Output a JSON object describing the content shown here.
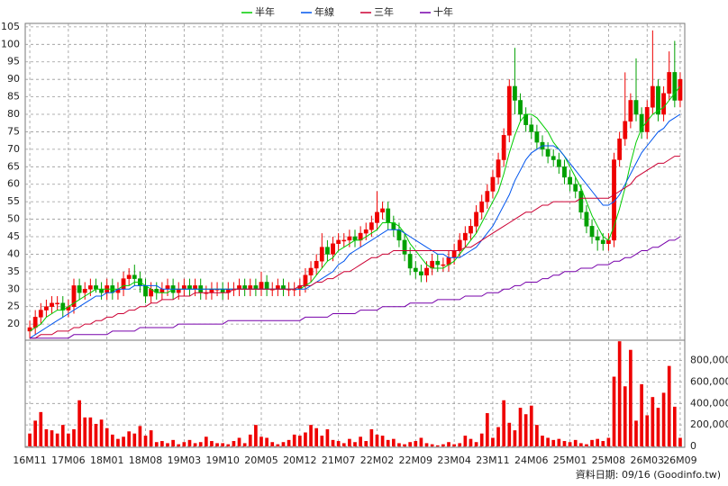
{
  "chart_data": [
    {
      "type": "candlestick",
      "ylim": [
        15.4,
        106
      ],
      "yticks": [
        20,
        25,
        30,
        35,
        40,
        45,
        50,
        55,
        60,
        65,
        70,
        75,
        80,
        85,
        90,
        95,
        100,
        105
      ],
      "grid": true,
      "legend": "top",
      "up_color": "#ee0000",
      "down_color": "#00a000",
      "open": [
        18,
        19,
        22,
        24,
        25,
        26,
        26,
        24,
        25,
        31,
        29,
        30,
        31,
        30,
        29,
        31,
        29,
        30,
        33,
        34,
        33,
        31,
        28,
        30,
        29,
        30,
        31,
        29,
        30,
        31,
        30,
        31,
        29,
        29,
        30,
        30,
        29,
        30,
        30,
        31,
        30,
        31,
        30,
        32,
        30,
        30,
        31,
        30,
        30,
        30,
        31,
        34,
        36,
        38,
        42,
        40,
        43,
        44,
        44,
        45,
        44,
        46,
        47,
        49,
        52,
        53,
        49,
        47,
        44,
        40,
        36,
        35,
        34,
        36,
        38,
        37,
        37,
        39,
        41,
        44,
        46,
        48,
        52,
        55,
        58,
        62,
        67,
        74,
        88,
        84,
        80,
        77,
        75,
        72,
        70,
        68,
        67,
        65,
        62,
        60,
        58,
        52,
        48,
        45,
        44,
        43,
        44,
        67,
        73,
        78,
        84,
        80,
        75,
        82,
        88,
        80,
        86,
        92,
        84
      ],
      "high": [
        21,
        24,
        26,
        27,
        28,
        28,
        28,
        27,
        33,
        33,
        32,
        33,
        33,
        32,
        33,
        33,
        32,
        35,
        36,
        37,
        35,
        33,
        32,
        32,
        32,
        33,
        33,
        32,
        33,
        33,
        33,
        33,
        31,
        32,
        32,
        32,
        32,
        32,
        33,
        33,
        33,
        33,
        35,
        34,
        32,
        33,
        33,
        32,
        32,
        33,
        36,
        38,
        40,
        46,
        44,
        45,
        46,
        46,
        47,
        47,
        48,
        49,
        51,
        58,
        55,
        55,
        51,
        49,
        46,
        42,
        38,
        37,
        38,
        40,
        40,
        39,
        41,
        43,
        46,
        48,
        50,
        54,
        57,
        60,
        64,
        69,
        76,
        90,
        99,
        86,
        82,
        79,
        77,
        74,
        72,
        70,
        69,
        67,
        64,
        62,
        60,
        54,
        50,
        47,
        46,
        46,
        69,
        75,
        92,
        86,
        96,
        82,
        84,
        104,
        90,
        88,
        98,
        101,
        92
      ],
      "low": [
        16,
        17,
        20,
        22,
        23,
        24,
        22,
        22,
        23,
        27,
        27,
        28,
        29,
        27,
        27,
        27,
        27,
        28,
        31,
        31,
        29,
        26,
        26,
        27,
        27,
        28,
        27,
        27,
        28,
        28,
        28,
        27,
        27,
        27,
        28,
        27,
        27,
        28,
        28,
        28,
        28,
        28,
        28,
        28,
        28,
        28,
        28,
        28,
        28,
        28,
        29,
        32,
        34,
        36,
        38,
        38,
        41,
        42,
        42,
        42,
        42,
        44,
        45,
        47,
        50,
        47,
        45,
        42,
        38,
        34,
        33,
        32,
        32,
        34,
        35,
        35,
        35,
        37,
        39,
        42,
        44,
        46,
        50,
        53,
        56,
        60,
        65,
        72,
        80,
        78,
        75,
        73,
        70,
        68,
        66,
        65,
        63,
        60,
        58,
        56,
        50,
        46,
        43,
        41,
        41,
        41,
        42,
        65,
        71,
        76,
        78,
        73,
        73,
        80,
        78,
        78,
        84,
        82,
        82
      ],
      "close": [
        19,
        22,
        24,
        25,
        26,
        26,
        24,
        25,
        31,
        29,
        30,
        31,
        30,
        29,
        31,
        29,
        30,
        33,
        34,
        33,
        31,
        28,
        30,
        29,
        30,
        31,
        29,
        30,
        31,
        30,
        31,
        29,
        29,
        30,
        30,
        29,
        30,
        30,
        31,
        30,
        31,
        30,
        32,
        30,
        30,
        31,
        30,
        30,
        30,
        31,
        34,
        36,
        38,
        42,
        40,
        43,
        44,
        44,
        45,
        44,
        46,
        47,
        49,
        52,
        53,
        49,
        47,
        44,
        40,
        36,
        35,
        34,
        36,
        38,
        37,
        37,
        39,
        41,
        44,
        46,
        48,
        52,
        55,
        58,
        62,
        67,
        74,
        88,
        84,
        80,
        77,
        75,
        72,
        70,
        68,
        67,
        65,
        62,
        60,
        58,
        52,
        48,
        45,
        44,
        43,
        44,
        67,
        73,
        78,
        84,
        80,
        75,
        82,
        88,
        80,
        86,
        92,
        84,
        90
      ],
      "series": [
        {
          "name": "半年",
          "color": "#00cc00",
          "values": [
            18,
            19,
            20,
            22,
            23,
            24,
            24,
            25,
            26,
            27,
            28,
            29,
            30,
            30,
            30,
            30,
            30,
            31,
            31,
            32,
            32,
            31,
            30,
            29,
            29,
            29,
            30,
            30,
            30,
            30,
            30,
            30,
            30,
            30,
            30,
            30,
            30,
            30,
            30,
            30,
            30,
            30,
            30,
            30,
            30,
            30,
            30,
            30,
            30,
            30,
            31,
            32,
            34,
            36,
            38,
            39,
            41,
            42,
            43,
            44,
            44,
            45,
            46,
            47,
            49,
            49,
            49,
            48,
            46,
            43,
            41,
            39,
            37,
            36,
            36,
            36,
            37,
            38,
            40,
            42,
            44,
            46,
            49,
            52,
            55,
            58,
            63,
            69,
            74,
            78,
            80,
            80,
            79,
            77,
            75,
            72,
            70,
            68,
            65,
            62,
            59,
            55,
            51,
            48,
            45,
            44,
            48,
            53,
            59,
            66,
            72,
            76,
            78,
            80,
            81,
            82,
            84,
            86,
            88
          ]
        },
        {
          "name": "年線",
          "color": "#0055ee",
          "values": [
            16,
            17,
            18,
            19,
            20,
            21,
            22,
            23,
            24,
            25,
            26,
            27,
            28,
            28,
            29,
            29,
            30,
            30,
            30,
            31,
            31,
            31,
            31,
            31,
            30,
            30,
            30,
            30,
            30,
            30,
            30,
            30,
            30,
            30,
            30,
            30,
            30,
            30,
            30,
            30,
            30,
            30,
            30,
            30,
            30,
            30,
            30,
            30,
            30,
            30,
            30,
            31,
            32,
            33,
            34,
            35,
            37,
            38,
            40,
            41,
            42,
            43,
            44,
            45,
            46,
            47,
            47,
            47,
            46,
            45,
            44,
            43,
            42,
            41,
            40,
            40,
            39,
            39,
            39,
            40,
            41,
            42,
            44,
            46,
            48,
            51,
            54,
            57,
            61,
            64,
            67,
            69,
            70,
            71,
            71,
            71,
            70,
            68,
            66,
            64,
            62,
            60,
            58,
            56,
            54,
            54,
            55,
            57,
            60,
            63,
            66,
            69,
            71,
            73,
            75,
            76,
            78,
            79,
            80
          ]
        },
        {
          "name": "三年",
          "color": "#cc0033",
          "values": [
            16,
            16,
            17,
            17,
            17,
            18,
            18,
            18,
            19,
            19,
            20,
            20,
            21,
            21,
            22,
            22,
            23,
            23,
            24,
            24,
            25,
            25,
            26,
            26,
            27,
            27,
            27,
            28,
            28,
            28,
            29,
            29,
            29,
            29,
            29,
            29,
            29,
            30,
            30,
            30,
            30,
            30,
            30,
            30,
            30,
            30,
            30,
            30,
            30,
            31,
            31,
            31,
            32,
            32,
            33,
            33,
            34,
            35,
            35,
            36,
            37,
            38,
            39,
            39,
            40,
            40,
            41,
            41,
            41,
            41,
            41,
            41,
            41,
            41,
            41,
            41,
            41,
            41,
            41,
            42,
            42,
            43,
            44,
            45,
            46,
            47,
            48,
            49,
            50,
            51,
            52,
            52,
            53,
            54,
            54,
            55,
            55,
            55,
            55,
            55,
            56,
            56,
            56,
            56,
            56,
            56,
            57,
            58,
            59,
            60,
            62,
            63,
            64,
            65,
            66,
            66,
            67,
            68,
            68
          ]
        },
        {
          "name": "十年",
          "color": "#7700aa",
          "values": [
            16,
            16,
            16,
            16,
            16,
            16,
            16,
            16,
            17,
            17,
            17,
            17,
            17,
            17,
            17,
            18,
            18,
            18,
            18,
            18,
            19,
            19,
            19,
            19,
            19,
            19,
            19,
            20,
            20,
            20,
            20,
            20,
            20,
            20,
            20,
            20,
            21,
            21,
            21,
            21,
            21,
            21,
            21,
            21,
            21,
            21,
            21,
            21,
            21,
            21,
            22,
            22,
            22,
            22,
            22,
            23,
            23,
            23,
            23,
            23,
            24,
            24,
            24,
            24,
            25,
            25,
            25,
            25,
            25,
            26,
            26,
            26,
            26,
            26,
            27,
            27,
            27,
            27,
            27,
            28,
            28,
            28,
            28,
            29,
            29,
            29,
            30,
            30,
            31,
            31,
            32,
            32,
            32,
            33,
            33,
            34,
            34,
            35,
            35,
            35,
            36,
            36,
            36,
            37,
            37,
            37,
            38,
            38,
            39,
            39,
            40,
            41,
            41,
            42,
            42,
            43,
            44,
            44,
            45
          ]
        }
      ]
    },
    {
      "type": "bar",
      "color": "#ee0000",
      "ylim": [
        0,
        990000
      ],
      "yticks": [
        0,
        {
          "value": 200000,
          "label": "200,000"
        },
        {
          "value": 400000,
          "label": "400,000"
        },
        {
          "value": 600000,
          "label": "600,000"
        },
        {
          "value": 800000,
          "label": "800,000"
        }
      ],
      "grid": true,
      "categories": [
        "16M11",
        null,
        null,
        null,
        null,
        null,
        null,
        "17M06",
        null,
        null,
        null,
        null,
        null,
        null,
        "18M01",
        null,
        null,
        null,
        null,
        null,
        null,
        "18M08",
        null,
        null,
        null,
        null,
        null,
        null,
        "19M03",
        null,
        null,
        null,
        null,
        null,
        null,
        "19M10",
        null,
        null,
        null,
        null,
        null,
        null,
        "20M05",
        null,
        null,
        null,
        null,
        null,
        null,
        "20M12",
        null,
        null,
        null,
        null,
        null,
        null,
        "21M07",
        null,
        null,
        null,
        null,
        null,
        null,
        "22M02",
        null,
        null,
        null,
        null,
        null,
        null,
        "22M09",
        null,
        null,
        null,
        null,
        null,
        null,
        "23M04",
        null,
        null,
        null,
        null,
        null,
        null,
        "23M11",
        null,
        null,
        null,
        null,
        null,
        null,
        "24M06",
        null,
        null,
        null,
        null,
        null,
        null,
        "25M01",
        null,
        null,
        null,
        null,
        null,
        null,
        "25M08",
        null,
        null,
        null,
        null,
        null,
        null,
        "26M03",
        null,
        null,
        null,
        null,
        null,
        "26M09"
      ],
      "values": [
        120000,
        240000,
        320000,
        160000,
        150000,
        120000,
        200000,
        120000,
        160000,
        430000,
        270000,
        270000,
        210000,
        250000,
        170000,
        110000,
        70000,
        90000,
        140000,
        120000,
        190000,
        100000,
        150000,
        40000,
        50000,
        30000,
        60000,
        20000,
        40000,
        60000,
        30000,
        40000,
        90000,
        50000,
        30000,
        30000,
        20000,
        50000,
        80000,
        30000,
        110000,
        200000,
        90000,
        80000,
        40000,
        20000,
        40000,
        60000,
        110000,
        100000,
        130000,
        200000,
        170000,
        100000,
        160000,
        60000,
        50000,
        30000,
        70000,
        40000,
        90000,
        50000,
        160000,
        110000,
        100000,
        60000,
        70000,
        30000,
        20000,
        40000,
        50000,
        80000,
        30000,
        20000,
        10000,
        20000,
        40000,
        20000,
        30000,
        100000,
        70000,
        40000,
        120000,
        310000,
        80000,
        180000,
        430000,
        220000,
        150000,
        360000,
        300000,
        380000,
        200000,
        100000,
        80000,
        60000,
        70000,
        50000,
        40000,
        60000,
        30000,
        20000,
        60000,
        70000,
        50000,
        80000,
        650000,
        980000,
        560000,
        900000,
        240000,
        580000,
        290000,
        460000,
        360000,
        500000,
        750000,
        370000,
        80000
      ]
    }
  ],
  "footer": "資料日期: 09/16 (Goodinfo.tw)"
}
